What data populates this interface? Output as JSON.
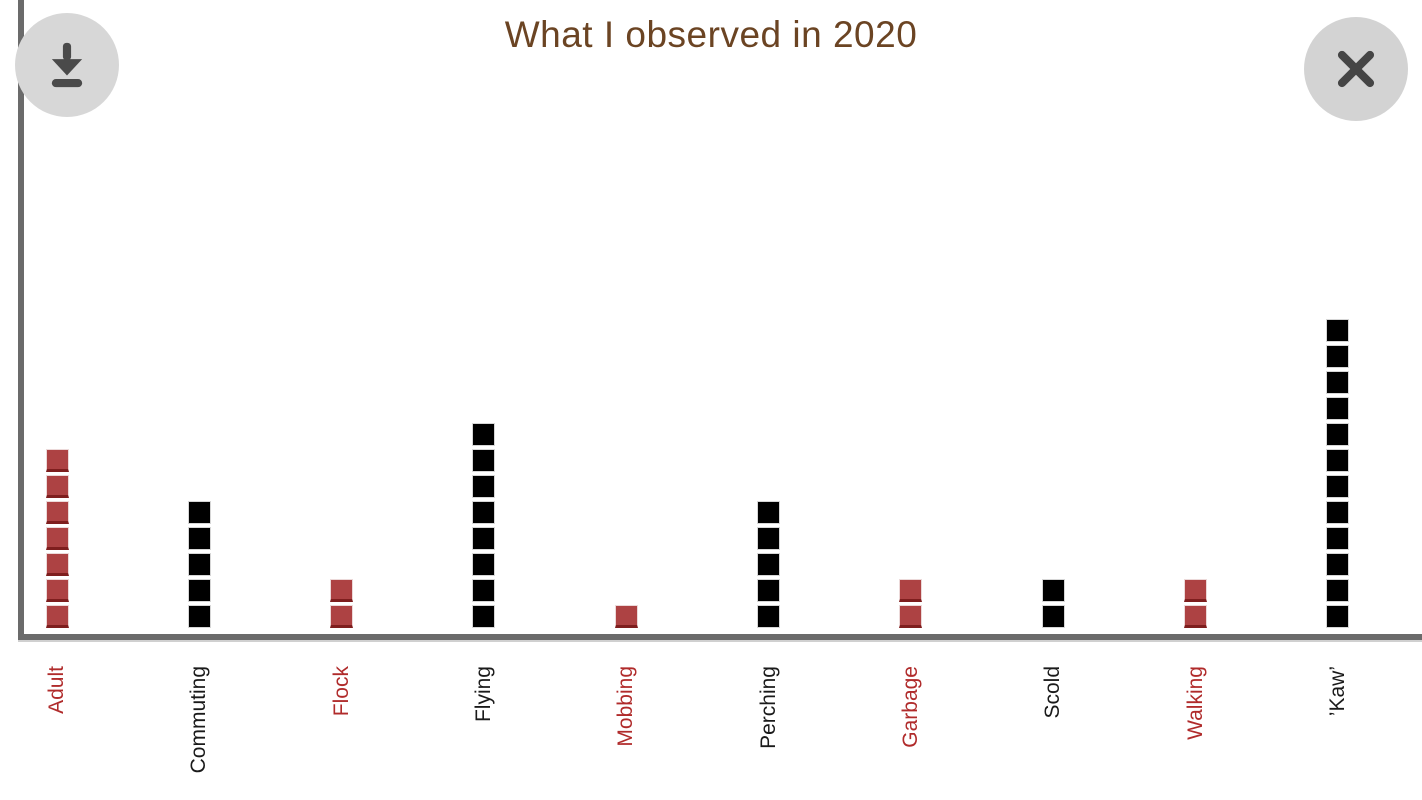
{
  "header": {
    "title": "What I observed in 2020",
    "title_color": "#6b4423"
  },
  "toolbar": {
    "download_icon": "download-icon",
    "close_icon": "close-icon",
    "button_bg": "#d7d7d7",
    "icon_color": "#4a4a4a"
  },
  "axes": {
    "color": "#6b6b6b"
  },
  "chart_data": {
    "type": "bar",
    "subtype": "unit-square-stack",
    "title": "What I observed in 2020",
    "categories": [
      "Adult",
      "Commuting",
      "Flock",
      "Flying",
      "Mobbing",
      "Perching",
      "Garbage",
      "Scold",
      "Walking",
      "’Kaw’"
    ],
    "values": [
      7,
      5,
      2,
      8,
      1,
      5,
      2,
      2,
      2,
      12
    ],
    "colors": [
      "red",
      "black",
      "red",
      "black",
      "red",
      "black",
      "red",
      "black",
      "red",
      "black"
    ],
    "palette": {
      "red": "#ad4243",
      "black": "#000000"
    },
    "label_palette": {
      "red": "#b02b2b",
      "black": "#1a1a1a"
    },
    "xlabel": "",
    "ylabel": "",
    "ylim": [
      0,
      12
    ],
    "grid": false,
    "legend": false,
    "tick_label_rotation_deg": 90
  }
}
